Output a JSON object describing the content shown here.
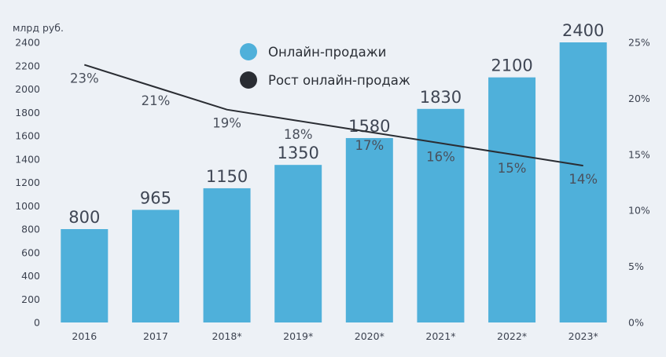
{
  "chart_data": {
    "type": "bar",
    "unit_label": "млрд руб.",
    "categories": [
      "2016",
      "2017",
      "2018*",
      "2019*",
      "2020*",
      "2021*",
      "2022*",
      "2023*"
    ],
    "series": [
      {
        "name": "Онлайн-продажи",
        "kind": "bar",
        "axis": "left",
        "color": "#4fb0da",
        "values": [
          800,
          965,
          1150,
          1350,
          1580,
          1830,
          2100,
          2400
        ],
        "data_labels": [
          "800",
          "965",
          "1150",
          "1350",
          "1580",
          "1830",
          "2100",
          "2400"
        ]
      },
      {
        "name": "Рост онлайн-продаж",
        "kind": "line",
        "axis": "right",
        "color": "#2a2d33",
        "values": [
          23,
          21,
          19,
          18,
          17,
          16,
          15,
          14
        ],
        "data_labels": [
          "23%",
          "21%",
          "19%",
          "18%",
          "17%",
          "16%",
          "15%",
          "14%"
        ]
      }
    ],
    "y_left": {
      "min": 0,
      "max": 2400,
      "ticks": [
        "0",
        "200",
        "400",
        "600",
        "800",
        "1000",
        "1200",
        "1400",
        "1600",
        "1800",
        "2000",
        "2200",
        "2400"
      ]
    },
    "y_right": {
      "min": 0,
      "max": 25,
      "ticks": [
        "0%",
        "5%",
        "10%",
        "15%",
        "20%",
        "25%"
      ]
    },
    "legend_position": "top-center",
    "grid": false
  }
}
